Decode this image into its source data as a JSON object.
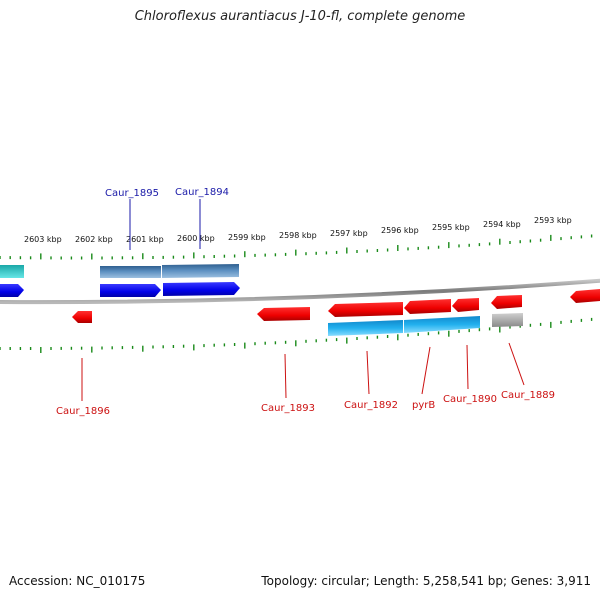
{
  "title": "Chloroflexus aurantiacus J-10-fl, complete genome",
  "footer": {
    "accession": "Accession: NC_010175",
    "summary": "Topology: circular; Length: 5,258,541 bp; Genes: 3,911"
  },
  "colors": {
    "tick": "#1a8a1a",
    "backbone": "#808080",
    "forward_gene": "#0000ee",
    "forward_feature": "#4f86b8",
    "reverse_gene": "#ee0000",
    "reverse_feature": "#22aaee",
    "label_forward": "#1a1aa8",
    "label_reverse": "#cc1111",
    "misc_feature": "#b0b0b0",
    "cyan_feature": "#33c6c6"
  },
  "scale_labels": [
    "2603 kbp",
    "2602 kbp",
    "2601 kbp",
    "2600 kbp",
    "2599 kbp",
    "2598 kbp",
    "2597 kbp",
    "2596 kbp",
    "2595 kbp",
    "2594 kbp",
    "2593 kbp"
  ],
  "genes_forward": [
    "Caur_1895",
    "Caur_1894"
  ],
  "genes_reverse": [
    "Caur_1896",
    "Caur_1893",
    "Caur_1892",
    "pyrB",
    "Caur_1890",
    "Caur_1889"
  ]
}
